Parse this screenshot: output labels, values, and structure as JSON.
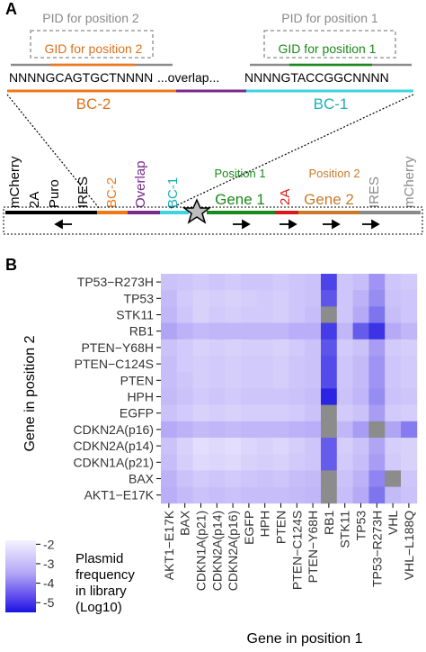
{
  "panel_a": {
    "label": "A",
    "pid2": "PID for position 2",
    "gid2": "GID for position 2",
    "pid1": "PID for position 1",
    "gid1": "GID for position 1",
    "seq_left": "NNNNGCAGTGCTNNNN",
    "seq_mid": "...overlap...",
    "seq_right": "NNNNGTACCGGCNNNN",
    "bc2": "BC-2",
    "bc1": "BC-1",
    "construct": {
      "mcherry_left": "mCherry",
      "t2a": "2A",
      "puro": "Puro",
      "ires_left": "IRES",
      "bc2": "BC-2",
      "overlap": "Overlap",
      "bc1": "BC-1",
      "position1": "Position 1",
      "gene1": "Gene 1",
      "t2a_mid": "2A",
      "position2": "Position 2",
      "gene2": "Gene 2",
      "ires_right": "IRES",
      "mcherry_right": "mCherry"
    }
  },
  "panel_b": {
    "label": "B",
    "ylabel": "Gene in position 2",
    "xlabel": "Gene in position 1",
    "legend_title": [
      "Plasmid",
      "frequency",
      "in library",
      "(Log10)"
    ],
    "legend_ticks": [
      "-2",
      "-3",
      "-4",
      "-5"
    ]
  },
  "colors": {
    "bc2": "#f07818",
    "overlap": "#7a2a8c",
    "bc1": "#3dd6dc",
    "gene1": "#1a8a1a",
    "t2a": "#d81a1a",
    "gene2": "#c87a2a",
    "grey": "#8a8a8a",
    "missing": "#8c8c8c"
  },
  "chart_data": {
    "type": "heatmap",
    "x_categories": [
      "AKT1-E17K",
      "BAX",
      "CDKN1A(p21)",
      "CDKN2A(p14)",
      "CDKN2A(p16)",
      "EGFP",
      "HPH",
      "PTEN",
      "PTEN-C124S",
      "PTEN-Y68H",
      "RB1",
      "STK11",
      "TP53",
      "TP53-R273H",
      "VHL",
      "VHL-L188Q"
    ],
    "y_categories": [
      "TP53-R273H",
      "TP53",
      "STK11",
      "RB1",
      "PTEN-Y68H",
      "PTEN-C124S",
      "PTEN",
      "HPH",
      "EGFP",
      "CDKN2A(p16)",
      "CDKN2A(p14)",
      "CDKN1A(p21)",
      "BAX",
      "AKT1-E17K"
    ],
    "xlabel": "Gene in position 1",
    "ylabel": "Gene in position 2",
    "colorbar": {
      "label": "Plasmid frequency in library (Log10)",
      "range": [
        -5.5,
        -1.8
      ],
      "ticks": [
        -2,
        -3,
        -4,
        -5
      ]
    },
    "missing_cells": [
      [
        2,
        10
      ],
      [
        8,
        10
      ],
      [
        9,
        10
      ],
      [
        9,
        13
      ],
      [
        12,
        10
      ],
      [
        12,
        14
      ],
      [
        13,
        10
      ]
    ],
    "values": [
      [
        -3.0,
        -2.9,
        -2.8,
        -2.9,
        -2.8,
        -2.9,
        -2.9,
        -2.8,
        -2.9,
        -3.0,
        -4.9,
        -2.9,
        -3.1,
        -3.9,
        -2.9,
        -2.8
      ],
      [
        -3.2,
        -2.8,
        -2.6,
        -2.7,
        -2.6,
        -2.7,
        -2.8,
        -2.7,
        -2.9,
        -3.0,
        -4.7,
        -2.9,
        -3.4,
        -4.0,
        -3.0,
        -2.9
      ],
      [
        -3.3,
        -2.9,
        -2.6,
        -2.8,
        -2.7,
        -2.8,
        -2.8,
        -2.7,
        -2.9,
        -3.1,
        null,
        -2.9,
        -3.6,
        -4.3,
        -3.1,
        -2.9
      ],
      [
        -3.7,
        -3.4,
        -3.2,
        -3.3,
        -3.3,
        -3.3,
        -3.3,
        -3.3,
        -3.5,
        -3.5,
        -5.0,
        -3.3,
        -4.6,
        -5.1,
        -3.6,
        -3.3
      ],
      [
        -3.0,
        -2.8,
        -2.6,
        -2.7,
        -2.6,
        -2.7,
        -2.7,
        -2.6,
        -2.8,
        -3.0,
        -4.7,
        -2.8,
        -3.0,
        -3.8,
        -2.8,
        -2.7
      ],
      [
        -3.1,
        -2.8,
        -2.7,
        -2.8,
        -2.7,
        -2.8,
        -2.8,
        -2.7,
        -2.9,
        -3.0,
        -4.8,
        -2.9,
        -3.2,
        -3.9,
        -2.9,
        -2.8
      ],
      [
        -3.1,
        -2.9,
        -2.7,
        -2.8,
        -2.7,
        -2.8,
        -2.8,
        -2.7,
        -2.9,
        -3.0,
        -4.8,
        -2.9,
        -3.2,
        -3.9,
        -2.9,
        -2.8
      ],
      [
        -3.2,
        -3.0,
        -2.8,
        -2.9,
        -2.8,
        -2.9,
        -2.9,
        -2.9,
        -3.0,
        -3.1,
        -5.3,
        -3.0,
        -3.3,
        -4.0,
        -3.0,
        -2.9
      ],
      [
        -3.0,
        -2.8,
        -2.6,
        -2.7,
        -2.6,
        -2.7,
        -2.7,
        -2.7,
        -2.8,
        -3.0,
        null,
        -2.8,
        -3.0,
        -3.8,
        -2.8,
        -2.7
      ],
      [
        -3.6,
        -3.4,
        -3.2,
        -3.3,
        -3.2,
        -3.3,
        -3.3,
        -3.3,
        -3.4,
        -3.5,
        null,
        -3.3,
        -3.8,
        null,
        -3.7,
        -4.2
      ],
      [
        -3.0,
        -2.6,
        -2.3,
        -2.4,
        -2.3,
        -2.5,
        -2.6,
        -2.5,
        -2.7,
        -2.9,
        -4.6,
        -2.7,
        -3.0,
        -3.7,
        -2.7,
        -2.6
      ],
      [
        -3.1,
        -2.7,
        -2.4,
        -2.5,
        -2.4,
        -2.6,
        -2.7,
        -2.6,
        -2.8,
        -2.9,
        -4.6,
        -2.8,
        -3.1,
        -3.8,
        -2.8,
        -2.6
      ],
      [
        -3.4,
        -3.0,
        -2.8,
        -2.9,
        -2.8,
        -2.9,
        -3.0,
        -2.9,
        -3.1,
        -3.2,
        null,
        -3.0,
        -3.4,
        -4.1,
        null,
        -2.9
      ],
      [
        -3.5,
        -3.2,
        -3.0,
        -3.1,
        -3.0,
        -3.1,
        -3.1,
        -3.1,
        -3.2,
        -3.3,
        null,
        -3.1,
        -3.6,
        -4.3,
        -3.2,
        -3.0
      ]
    ]
  }
}
